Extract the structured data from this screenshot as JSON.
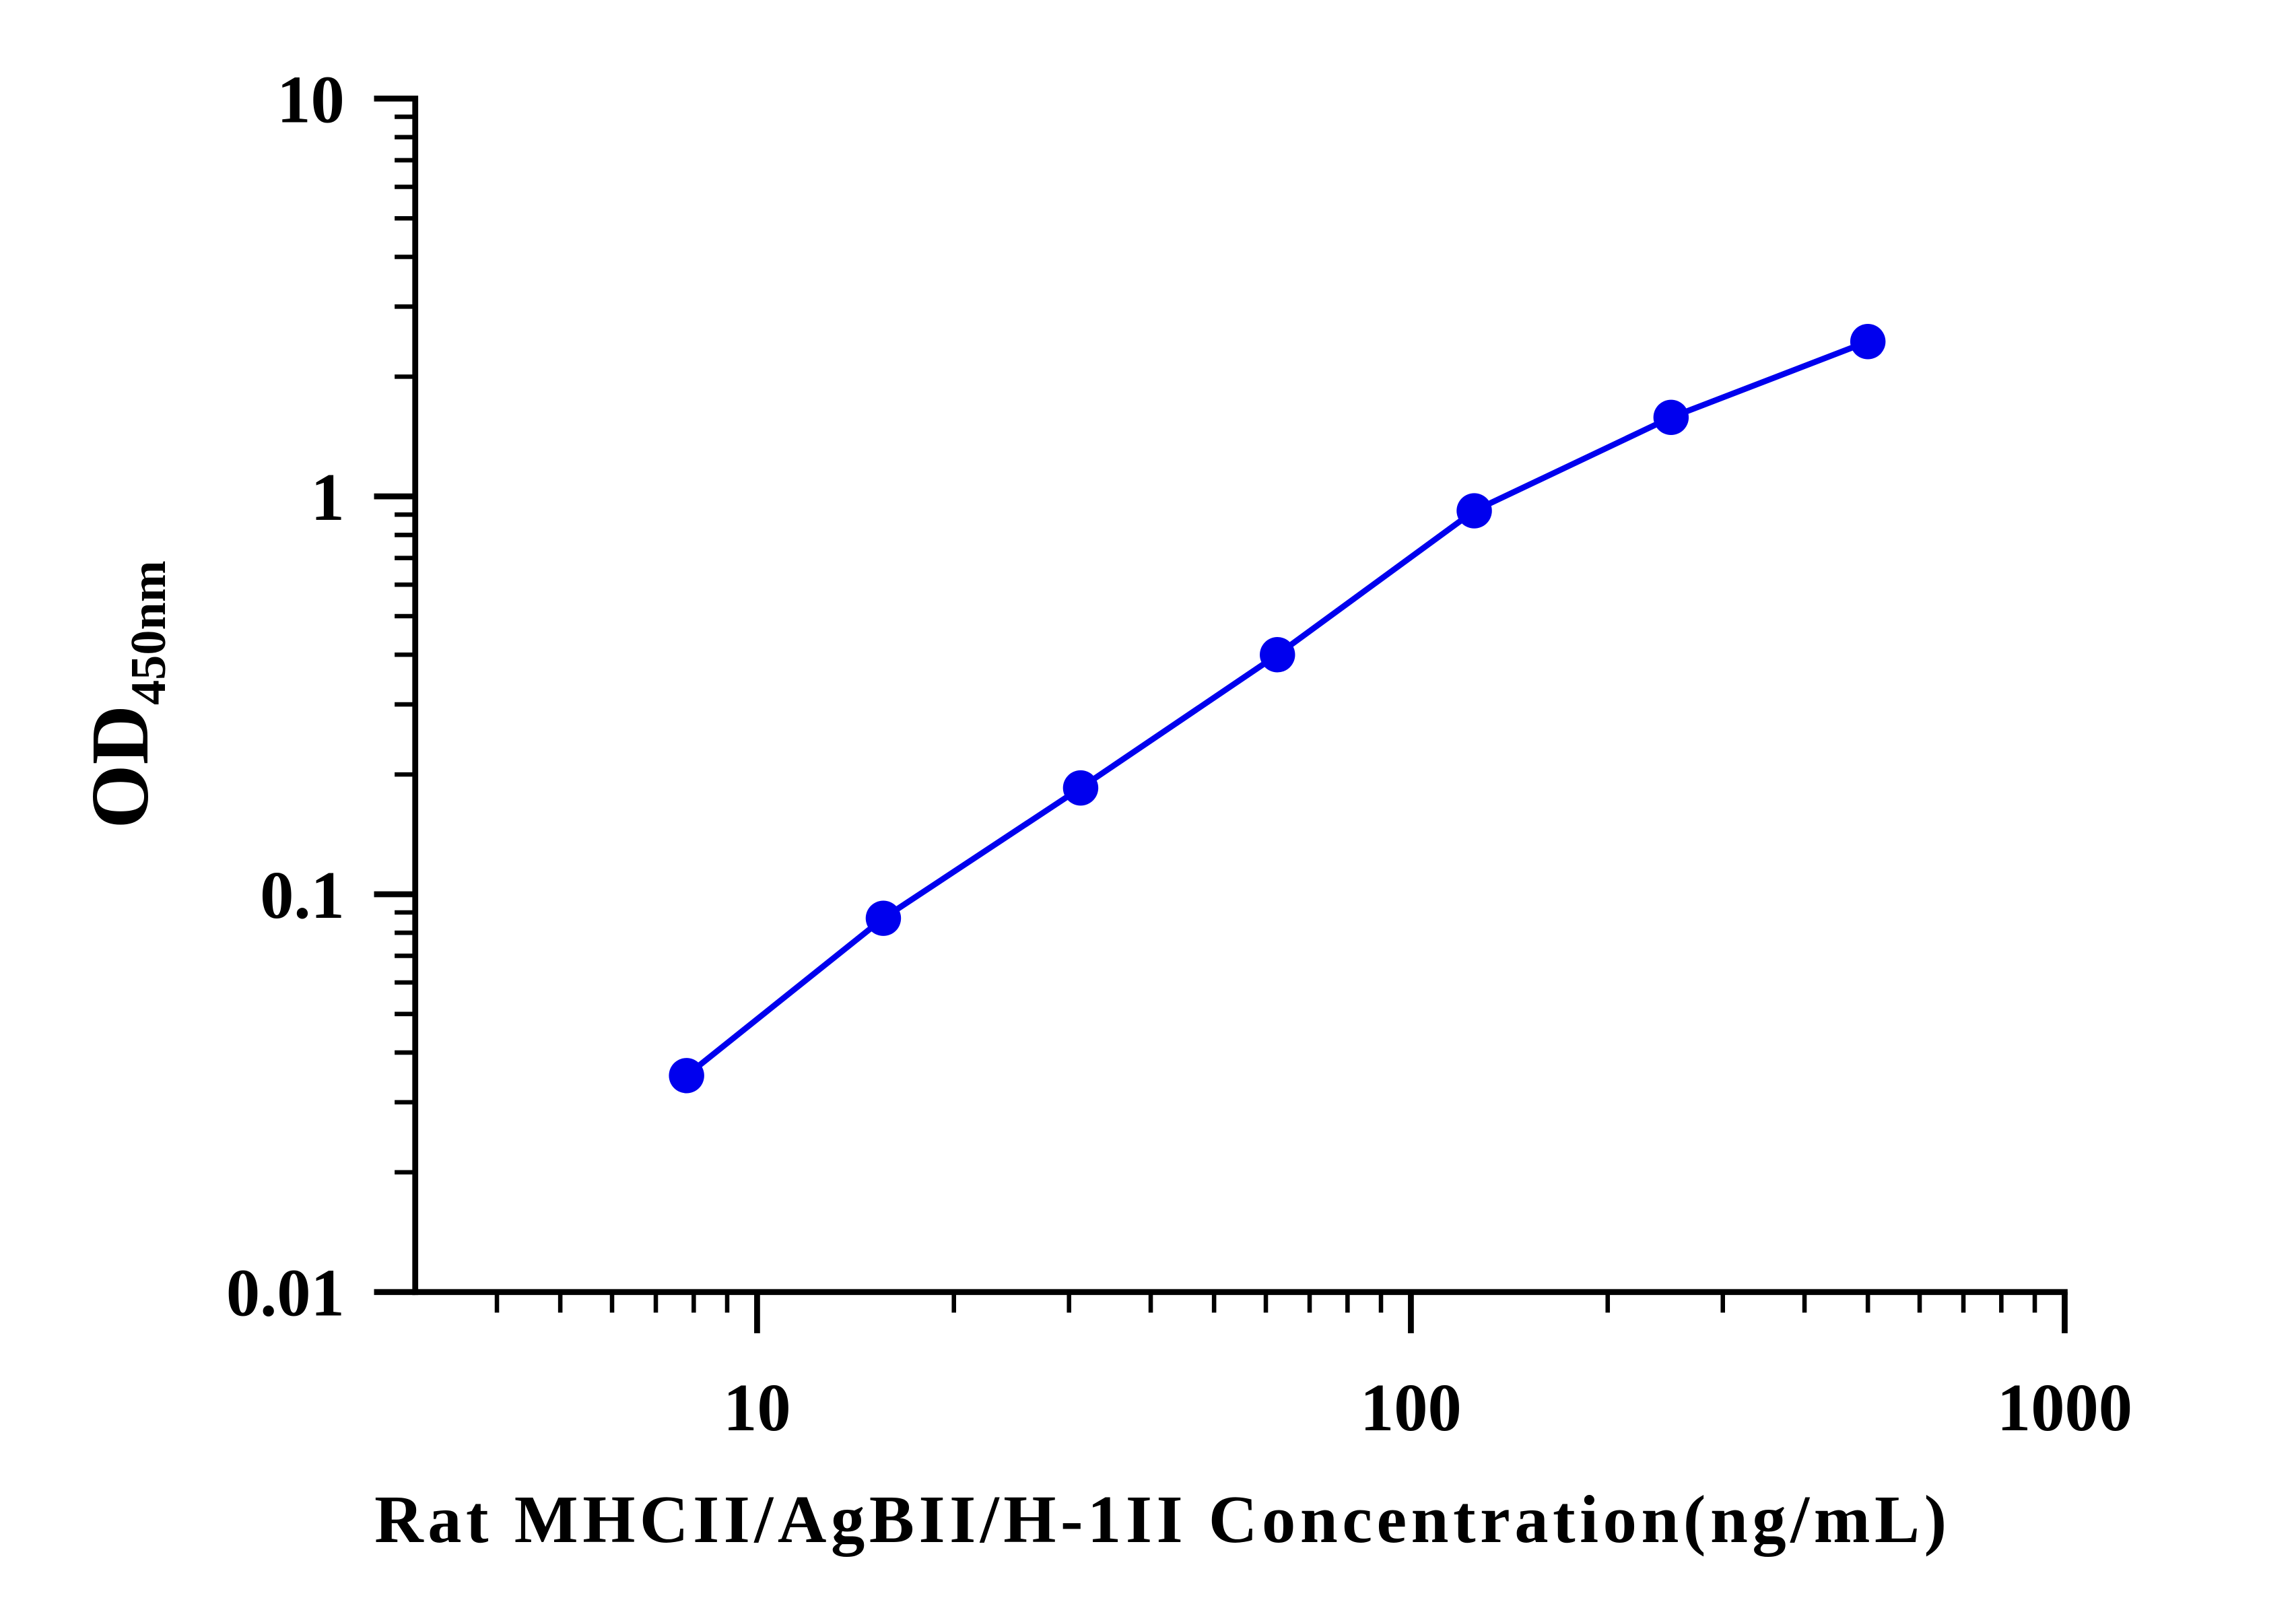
{
  "chart_data": {
    "type": "line",
    "x_label": "Rat MHCII/AgBII/H-1II Concentration(ng/mL)",
    "y_label": "OD",
    "y_label_sub": "450nm",
    "x": [
      7.8,
      15.6,
      31.25,
      62.5,
      125,
      250,
      500
    ],
    "series": [
      {
        "color": "#0000ee",
        "values": [
          0.035,
          0.087,
          0.185,
          0.4,
          0.92,
          1.58,
          2.45
        ]
      }
    ],
    "xlim": [
      3,
      1000
    ],
    "ylim": [
      0.01,
      10
    ],
    "xticks": [
      10,
      100,
      1000
    ],
    "yticks": [
      0.01,
      0.1,
      1,
      10
    ],
    "xscale": "log",
    "yscale": "log"
  }
}
